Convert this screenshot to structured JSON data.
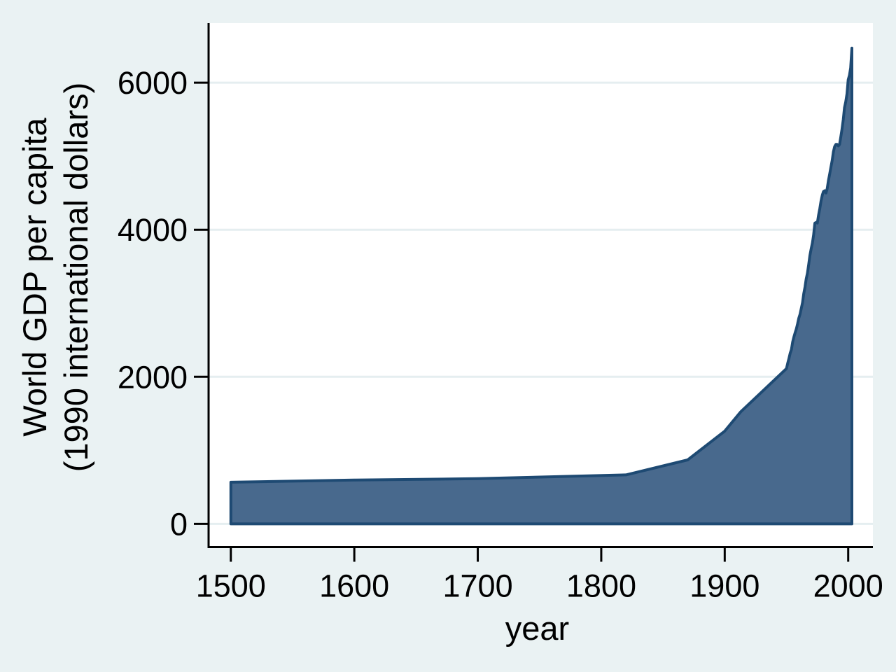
{
  "figure": {
    "background_color": "#eaf2f3",
    "plot_background_color": "#ffffff",
    "gridline_color": "#e5eef0",
    "axis_color": "#000000",
    "text_color": "#000000"
  },
  "chart_data": {
    "type": "area",
    "title": "",
    "xlabel": "year",
    "ylabel_lines": [
      "World GDP per capita",
      "(1990 international dollars)"
    ],
    "x_ticks": [
      1500,
      1600,
      1700,
      1800,
      1900,
      2000
    ],
    "y_ticks": [
      0,
      2000,
      4000,
      6000
    ],
    "xlim": [
      1482,
      2020
    ],
    "ylim": [
      -315,
      6810
    ],
    "grid": true,
    "legend": "none",
    "series": [
      {
        "name": "World GDP per capita (1990 international dollars)",
        "fill_color": "#48698d",
        "line_color": "#1e4a73",
        "points": [
          [
            1500,
            566
          ],
          [
            1600,
            596
          ],
          [
            1700,
            615
          ],
          [
            1820,
            666
          ],
          [
            1870,
            870
          ],
          [
            1900,
            1261
          ],
          [
            1913,
            1525
          ],
          [
            1950,
            2111
          ],
          [
            1951,
            2185
          ],
          [
            1952,
            2250
          ],
          [
            1953,
            2320
          ],
          [
            1954,
            2370
          ],
          [
            1955,
            2470
          ],
          [
            1956,
            2540
          ],
          [
            1957,
            2600
          ],
          [
            1958,
            2650
          ],
          [
            1959,
            2720
          ],
          [
            1960,
            2800
          ],
          [
            1961,
            2850
          ],
          [
            1962,
            2930
          ],
          [
            1963,
            3010
          ],
          [
            1964,
            3130
          ],
          [
            1965,
            3220
          ],
          [
            1966,
            3330
          ],
          [
            1967,
            3410
          ],
          [
            1968,
            3530
          ],
          [
            1969,
            3650
          ],
          [
            1970,
            3740
          ],
          [
            1971,
            3820
          ],
          [
            1972,
            3930
          ],
          [
            1973,
            4090
          ],
          [
            1974,
            4100
          ],
          [
            1975,
            4090
          ],
          [
            1976,
            4200
          ],
          [
            1977,
            4290
          ],
          [
            1978,
            4390
          ],
          [
            1979,
            4470
          ],
          [
            1980,
            4520
          ],
          [
            1981,
            4530
          ],
          [
            1982,
            4500
          ],
          [
            1983,
            4560
          ],
          [
            1984,
            4670
          ],
          [
            1985,
            4760
          ],
          [
            1986,
            4850
          ],
          [
            1987,
            4940
          ],
          [
            1988,
            5060
          ],
          [
            1989,
            5130
          ],
          [
            1990,
            5160
          ],
          [
            1991,
            5160
          ],
          [
            1992,
            5140
          ],
          [
            1993,
            5160
          ],
          [
            1994,
            5260
          ],
          [
            1995,
            5370
          ],
          [
            1996,
            5500
          ],
          [
            1997,
            5660
          ],
          [
            1998,
            5740
          ],
          [
            1999,
            5850
          ],
          [
            2000,
            6040
          ],
          [
            2001,
            6100
          ],
          [
            2002,
            6200
          ],
          [
            2003,
            6470
          ]
        ]
      }
    ]
  }
}
